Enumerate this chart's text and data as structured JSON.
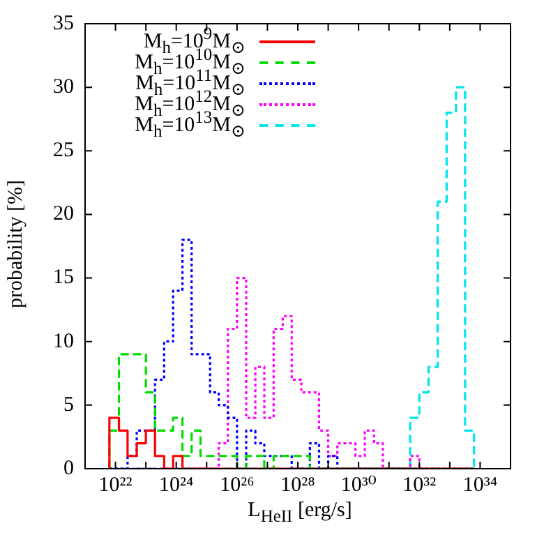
{
  "chart_data": {
    "type": "histogram",
    "xlabel": "L$_{HeII}$ [erg/s]",
    "ylabel": "probability [%]",
    "log": "x",
    "legend": "top left",
    "xlim": [
      1e+21,
      1e+35
    ],
    "ylim": [
      0,
      35
    ],
    "yticks": [
      0,
      5,
      10,
      15,
      20,
      25,
      30,
      35
    ],
    "xticks": [
      {
        "value": 1e+21,
        "label": null
      },
      {
        "value": 1e+22,
        "label": "10²²"
      },
      {
        "value": 1e+23,
        "label": null
      },
      {
        "value": 1e+24,
        "label": "10²⁴"
      },
      {
        "value": 1e+25,
        "label": null
      },
      {
        "value": 1e+26,
        "label": "10²⁶"
      },
      {
        "value": 1e+27,
        "label": null
      },
      {
        "value": 1e+28,
        "label": "10²⁸"
      },
      {
        "value": 1e+29,
        "label": null
      },
      {
        "value": 1e+30,
        "label": "10³⁰"
      },
      {
        "value": 1e+31,
        "label": null
      },
      {
        "value": 1e+32,
        "label": "10³²"
      },
      {
        "value": 1e+33,
        "label": null
      },
      {
        "value": 1e+34,
        "label": "10³⁴"
      },
      {
        "value": 1e+35,
        "label": null
      }
    ],
    "bins": [
      6.3e+21,
      1.3e+22,
      2.5e+22,
      5e+22,
      1e+23,
      2e+23,
      4e+23,
      7.9e+23,
      1.6e+24,
      3.2e+24,
      6.3e+24,
      1.3e+25,
      2.5e+25,
      5e+25,
      1e+26,
      2e+26,
      4e+26,
      7.9e+26,
      1.6e+27,
      3.2e+27,
      6.3e+27,
      1.3e+28,
      2.5e+28,
      5e+28,
      1e+29,
      2e+29,
      4e+29,
      7.9e+29,
      1.6e+30,
      3.2e+30,
      6.3e+30,
      1.3e+31,
      2.5e+31,
      5e+31,
      1e+32,
      2e+32,
      4e+32,
      7.9e+32,
      1.6e+33,
      3.2e+33,
      6.3e+33
    ],
    "series": [
      {
        "name": "M$_{h}$=10$^{9}$M$_{⊙}$",
        "color": "#ff0000",
        "line_style": "solid",
        "values": [
          4,
          3,
          1,
          2,
          3,
          1,
          0,
          1,
          0,
          0,
          0,
          0,
          0,
          0,
          0,
          0,
          0,
          0,
          0,
          0,
          0,
          0,
          0,
          0,
          0,
          0,
          0,
          0,
          0,
          0,
          0,
          0,
          0,
          0,
          0,
          0,
          0,
          0,
          0,
          0
        ]
      },
      {
        "name": "M$_{h}$=10$^{10}$M$_{⊙}$",
        "color": "#00dd00",
        "line_style": "dashed",
        "values": [
          3,
          9,
          9,
          9,
          6,
          3,
          3,
          4,
          1,
          3,
          1,
          1,
          1,
          1,
          0,
          1,
          1,
          0,
          1,
          1,
          1,
          1,
          0,
          0,
          0,
          0,
          0,
          0,
          0,
          0,
          0,
          0,
          0,
          0,
          0,
          0,
          0,
          0,
          0,
          0
        ]
      },
      {
        "name": "M$_{h}$=10$^{11}$M$_{⊙}$",
        "color": "#0000ff",
        "line_style": "dotted",
        "values": [
          0,
          0,
          1,
          3,
          3,
          7,
          10,
          14,
          18,
          9,
          9,
          6,
          5,
          4,
          0,
          3,
          2,
          1,
          1,
          1,
          0,
          0,
          2,
          0,
          1,
          0,
          0,
          0,
          0,
          0,
          0,
          0,
          0,
          0,
          0,
          0,
          0,
          0,
          0,
          0
        ]
      },
      {
        "name": "M$_{h}$=10$^{12}$M$_{⊙}$",
        "color": "#ff00ff",
        "line_style": "dotted",
        "values": [
          0,
          0,
          0,
          0,
          0,
          0,
          0,
          0,
          0,
          0,
          0,
          0,
          2,
          11,
          15,
          4,
          8,
          4,
          11,
          12,
          7,
          6,
          6,
          3,
          1,
          2,
          2,
          1,
          3,
          2,
          0,
          0,
          0,
          1,
          0,
          0,
          0,
          0,
          0,
          0
        ]
      },
      {
        "name": "M$_{h}$=10$^{13}$M$_{⊙}$",
        "color": "#00e5ee",
        "line_style": "dashed",
        "values": [
          0,
          0,
          0,
          0,
          0,
          0,
          0,
          0,
          0,
          0,
          0,
          0,
          0,
          0,
          0,
          0,
          0,
          0,
          0,
          0,
          0,
          0,
          0,
          0,
          0,
          0,
          0,
          0,
          0,
          0,
          0,
          0,
          0,
          4,
          6,
          8,
          21,
          28,
          30,
          3
        ]
      }
    ]
  }
}
